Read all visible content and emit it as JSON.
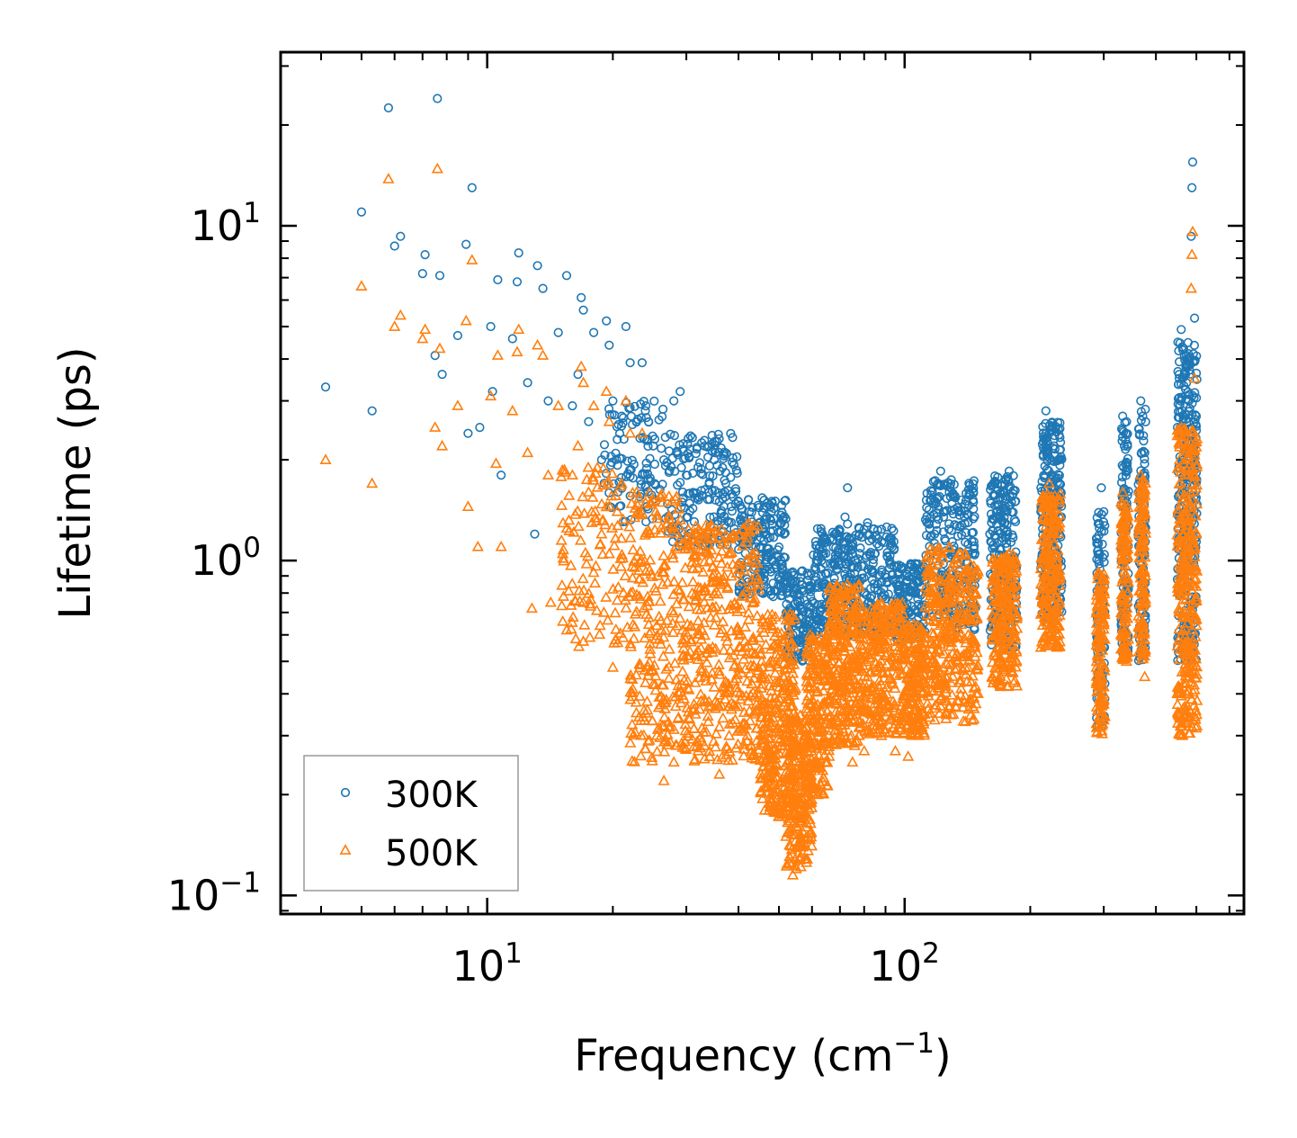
{
  "chart_data": {
    "type": "scatter",
    "title": "",
    "xlabel": "Frequency",
    "xlabel_unit": "(cm",
    "xlabel_exp": "−1",
    "xlabel_close": ")",
    "ylabel": "Lifetime (ps)",
    "xscale": "log",
    "yscale": "log",
    "xlim": [
      3.2,
      650
    ],
    "ylim": [
      0.088,
      33
    ],
    "x_ticks": [
      {
        "value": 10,
        "base": "10",
        "exp": "1"
      },
      {
        "value": 100,
        "base": "10",
        "exp": "2"
      }
    ],
    "y_ticks": [
      {
        "value": 0.1,
        "base": "10",
        "exp": "−1"
      },
      {
        "value": 1,
        "base": "10",
        "exp": "0"
      },
      {
        "value": 10,
        "base": "10",
        "exp": "1"
      }
    ],
    "legend": {
      "position": "bottom-left",
      "frame": true
    },
    "series": [
      {
        "name": "300K",
        "marker": "circle-open",
        "color": "#1f77b4",
        "points": [
          [
            4.1,
            3.3
          ],
          [
            5.0,
            11.0
          ],
          [
            5.3,
            2.8
          ],
          [
            5.8,
            22.5
          ],
          [
            6.0,
            8.7
          ],
          [
            6.2,
            9.3
          ],
          [
            7.0,
            7.2
          ],
          [
            7.1,
            8.2
          ],
          [
            7.5,
            4.1
          ],
          [
            7.6,
            24.0
          ],
          [
            7.7,
            7.1
          ],
          [
            7.8,
            3.6
          ],
          [
            8.5,
            4.7
          ],
          [
            8.9,
            8.8
          ],
          [
            9.0,
            2.4
          ],
          [
            9.2,
            13.0
          ],
          [
            9.6,
            2.5
          ],
          [
            10.2,
            5.0
          ],
          [
            10.3,
            3.2
          ],
          [
            10.6,
            6.9
          ],
          [
            10.8,
            1.8
          ],
          [
            11.5,
            4.6
          ],
          [
            11.8,
            6.8
          ],
          [
            11.9,
            8.3
          ],
          [
            12.5,
            3.4
          ],
          [
            13.0,
            1.2
          ],
          [
            13.2,
            7.6
          ],
          [
            13.6,
            6.5
          ],
          [
            14.0,
            3.0
          ],
          [
            14.8,
            4.8
          ],
          [
            15.5,
            7.1
          ],
          [
            16.0,
            2.9
          ],
          [
            16.5,
            3.6
          ],
          [
            16.8,
            6.1
          ],
          [
            17.0,
            5.6
          ],
          [
            17.5,
            2.6
          ],
          [
            18.0,
            4.8
          ],
          [
            18.8,
            2.0
          ],
          [
            19.3,
            5.2
          ],
          [
            19.6,
            4.4
          ],
          [
            20.0,
            3.0
          ],
          [
            20.5,
            2.3
          ],
          [
            21.0,
            2.7
          ],
          [
            21.5,
            5.0
          ],
          [
            22.0,
            3.9
          ],
          [
            22.8,
            2.6
          ],
          [
            23.5,
            3.9
          ],
          [
            24.0,
            2.9
          ],
          [
            25.0,
            2.2
          ],
          [
            26.5,
            2.0
          ],
          [
            28.0,
            3.0
          ],
          [
            29.0,
            3.2
          ],
          [
            30.0,
            1.8
          ],
          [
            32.0,
            1.9
          ],
          [
            34.0,
            1.6
          ],
          [
            35.0,
            2.0
          ],
          [
            36.0,
            1.5
          ],
          [
            38.0,
            1.3
          ],
          [
            40.0,
            1.5
          ],
          [
            44.0,
            1.1
          ],
          [
            48.0,
            1.0
          ],
          [
            52.0,
            0.85
          ],
          [
            55.0,
            0.7
          ],
          [
            57.0,
            0.58
          ],
          [
            60.0,
            0.65
          ],
          [
            64.0,
            0.85
          ],
          [
            68.0,
            1.2
          ],
          [
            72.0,
            1.35
          ],
          [
            73.0,
            1.65
          ],
          [
            78.0,
            1.2
          ],
          [
            85.0,
            1.05
          ],
          [
            92.0,
            0.95
          ],
          [
            100.0,
            0.9
          ],
          [
            108.0,
            0.8
          ],
          [
            118.0,
            1.2
          ],
          [
            122.0,
            1.85
          ],
          [
            128.0,
            1.6
          ],
          [
            135.0,
            1.4
          ],
          [
            142.0,
            1.3
          ],
          [
            148.0,
            0.9
          ],
          [
            160.0,
            1.2
          ],
          [
            172.0,
            1.6
          ],
          [
            178.0,
            1.85
          ],
          [
            184.0,
            1.5
          ],
          [
            212.0,
            1.4
          ],
          [
            218.0,
            2.8
          ],
          [
            222.0,
            2.4
          ],
          [
            228.0,
            2.2
          ],
          [
            235.0,
            1.7
          ],
          [
            292.0,
            1.0
          ],
          [
            296.0,
            1.65
          ],
          [
            300.0,
            1.4
          ],
          [
            333.0,
            2.7
          ],
          [
            336.0,
            2.2
          ],
          [
            340.0,
            1.3
          ],
          [
            368.0,
            3.0
          ],
          [
            372.0,
            2.7
          ],
          [
            376.0,
            1.6
          ],
          [
            455.0,
            3.5
          ],
          [
            460.0,
            4.9
          ],
          [
            466.0,
            4.3
          ],
          [
            471.0,
            3.6
          ],
          [
            480.0,
            3.0
          ],
          [
            486.0,
            9.3
          ],
          [
            488.0,
            13.0
          ],
          [
            490.0,
            15.5
          ],
          [
            495.0,
            5.3
          ],
          [
            500.0,
            2.7
          ]
        ],
        "bands": [
          {
            "x": [
              19,
              27
            ],
            "y": [
              1.3,
              3.0
            ],
            "n": 110
          },
          {
            "x": [
              27,
              40
            ],
            "y": [
              1.1,
              2.4
            ],
            "n": 180
          },
          {
            "x": [
              40,
              52
            ],
            "y": [
              0.78,
              1.55
            ],
            "n": 200
          },
          {
            "x": [
              52,
              60
            ],
            "y": [
              0.5,
              0.95
            ],
            "n": 140
          },
          {
            "x": [
              60,
              72
            ],
            "y": [
              0.6,
              1.25
            ],
            "n": 180
          },
          {
            "x": [
              72,
              95
            ],
            "y": [
              0.6,
              1.3
            ],
            "n": 200
          },
          {
            "x": [
              95,
              112
            ],
            "y": [
              0.58,
              0.98
            ],
            "n": 140
          },
          {
            "x": [
              112,
              148
            ],
            "y": [
              0.62,
              1.75
            ],
            "n": 240
          },
          {
            "x": [
              160,
              186
            ],
            "y": [
              0.55,
              1.8
            ],
            "n": 230
          },
          {
            "x": [
              212,
              238
            ],
            "y": [
              0.65,
              2.6
            ],
            "n": 230
          },
          {
            "x": [
              288,
              302
            ],
            "y": [
              0.32,
              1.4
            ],
            "n": 110
          },
          {
            "x": [
              330,
              344
            ],
            "y": [
              0.5,
              2.6
            ],
            "n": 110
          },
          {
            "x": [
              363,
              378
            ],
            "y": [
              0.5,
              2.9
            ],
            "n": 110
          },
          {
            "x": [
              450,
              502
            ],
            "y": [
              0.5,
              4.5
            ],
            "n": 300
          }
        ]
      },
      {
        "name": "500K",
        "marker": "triangle-open",
        "color": "#ff7f0e",
        "points": [
          [
            4.1,
            2.0
          ],
          [
            5.0,
            6.6
          ],
          [
            5.3,
            1.7
          ],
          [
            5.8,
            13.8
          ],
          [
            6.0,
            5.0
          ],
          [
            6.2,
            5.4
          ],
          [
            7.0,
            4.6
          ],
          [
            7.1,
            4.9
          ],
          [
            7.5,
            2.5
          ],
          [
            7.6,
            14.8
          ],
          [
            7.7,
            4.3
          ],
          [
            7.8,
            2.2
          ],
          [
            8.5,
            2.9
          ],
          [
            8.9,
            5.2
          ],
          [
            9.0,
            1.45
          ],
          [
            9.2,
            7.9
          ],
          [
            9.5,
            1.1
          ],
          [
            10.2,
            3.1
          ],
          [
            10.5,
            1.95
          ],
          [
            10.6,
            4.1
          ],
          [
            10.8,
            1.1
          ],
          [
            11.5,
            2.8
          ],
          [
            11.8,
            4.2
          ],
          [
            11.9,
            4.9
          ],
          [
            12.5,
            2.1
          ],
          [
            12.8,
            0.72
          ],
          [
            13.2,
            4.4
          ],
          [
            13.6,
            4.1
          ],
          [
            14.0,
            1.8
          ],
          [
            14.2,
            0.75
          ],
          [
            14.8,
            2.9
          ],
          [
            15.5,
            0.62
          ],
          [
            16.0,
            1.8
          ],
          [
            16.5,
            2.2
          ],
          [
            16.8,
            3.8
          ],
          [
            17.0,
            3.4
          ],
          [
            17.5,
            1.6
          ],
          [
            18.0,
            2.9
          ],
          [
            18.8,
            1.2
          ],
          [
            19.3,
            3.2
          ],
          [
            19.6,
            2.6
          ],
          [
            20.0,
            0.48
          ],
          [
            20.5,
            1.4
          ],
          [
            21.0,
            1.7
          ],
          [
            21.5,
            3.0
          ],
          [
            22.0,
            2.4
          ],
          [
            22.8,
            1.6
          ],
          [
            23.5,
            2.4
          ],
          [
            24.0,
            0.35
          ],
          [
            25.5,
            0.3
          ],
          [
            26.5,
            0.22
          ],
          [
            28.0,
            0.25
          ],
          [
            32.0,
            0.27
          ],
          [
            36.0,
            0.23
          ],
          [
            38.0,
            0.3
          ],
          [
            42.0,
            0.3
          ],
          [
            47.0,
            0.21
          ],
          [
            50.0,
            0.18
          ],
          [
            52.0,
            0.15
          ],
          [
            53.0,
            0.125
          ],
          [
            54.0,
            0.115
          ],
          [
            55.0,
            0.12
          ],
          [
            56.0,
            0.14
          ],
          [
            58.0,
            0.16
          ],
          [
            62.0,
            0.2
          ],
          [
            66.0,
            0.26
          ],
          [
            70.0,
            0.3
          ],
          [
            75.0,
            0.25
          ],
          [
            80.0,
            0.27
          ],
          [
            88.0,
            0.3
          ],
          [
            95.0,
            0.27
          ],
          [
            102.0,
            0.26
          ],
          [
            108.0,
            0.3
          ],
          [
            115.0,
            0.35
          ],
          [
            122.0,
            0.85
          ],
          [
            128.0,
            1.1
          ],
          [
            135.0,
            1.05
          ],
          [
            142.0,
            0.6
          ],
          [
            148.0,
            0.42
          ],
          [
            162.0,
            0.45
          ],
          [
            172.0,
            0.95
          ],
          [
            178.0,
            1.05
          ],
          [
            184.0,
            0.95
          ],
          [
            212.0,
            0.55
          ],
          [
            218.0,
            1.5
          ],
          [
            222.0,
            1.7
          ],
          [
            228.0,
            1.2
          ],
          [
            235.0,
            0.9
          ],
          [
            290.0,
            0.32
          ],
          [
            294.0,
            0.6
          ],
          [
            300.0,
            0.4
          ],
          [
            333.0,
            1.6
          ],
          [
            336.0,
            1.4
          ],
          [
            340.0,
            0.5
          ],
          [
            368.0,
            1.8
          ],
          [
            372.0,
            1.6
          ],
          [
            376.0,
            0.45
          ],
          [
            452.0,
            0.4
          ],
          [
            458.0,
            0.32
          ],
          [
            462.0,
            0.3
          ],
          [
            470.0,
            1.8
          ],
          [
            486.0,
            6.5
          ],
          [
            488.0,
            8.2
          ],
          [
            490.0,
            9.6
          ],
          [
            495.0,
            3.5
          ],
          [
            500.0,
            1.2
          ]
        ],
        "bands": [
          {
            "x": [
              15,
              22
            ],
            "y": [
              0.55,
              1.9
            ],
            "n": 120
          },
          {
            "x": [
              22,
              30
            ],
            "y": [
              0.25,
              1.6
            ],
            "n": 260
          },
          {
            "x": [
              30,
              45
            ],
            "y": [
              0.25,
              1.3
            ],
            "n": 380
          },
          {
            "x": [
              45,
              55
            ],
            "y": [
              0.17,
              0.7
            ],
            "n": 320
          },
          {
            "x": [
              52,
              60
            ],
            "y": [
              0.12,
              0.35
            ],
            "n": 220
          },
          {
            "x": [
              58,
              66
            ],
            "y": [
              0.2,
              0.6
            ],
            "n": 200
          },
          {
            "x": [
              66,
              78
            ],
            "y": [
              0.28,
              0.85
            ],
            "n": 280
          },
          {
            "x": [
              78,
              100
            ],
            "y": [
              0.3,
              0.75
            ],
            "n": 300
          },
          {
            "x": [
              100,
              112
            ],
            "y": [
              0.3,
              0.65
            ],
            "n": 180
          },
          {
            "x": [
              112,
              150
            ],
            "y": [
              0.33,
              1.1
            ],
            "n": 340
          },
          {
            "x": [
              162,
              186
            ],
            "y": [
              0.42,
              1.05
            ],
            "n": 230
          },
          {
            "x": [
              212,
              236
            ],
            "y": [
              0.55,
              1.6
            ],
            "n": 230
          },
          {
            "x": [
              288,
              302
            ],
            "y": [
              0.3,
              0.95
            ],
            "n": 130
          },
          {
            "x": [
              330,
              344
            ],
            "y": [
              0.5,
              1.55
            ],
            "n": 120
          },
          {
            "x": [
              363,
              378
            ],
            "y": [
              0.5,
              1.75
            ],
            "n": 120
          },
          {
            "x": [
              450,
              502
            ],
            "y": [
              0.3,
              2.5
            ],
            "n": 320
          }
        ]
      }
    ]
  }
}
